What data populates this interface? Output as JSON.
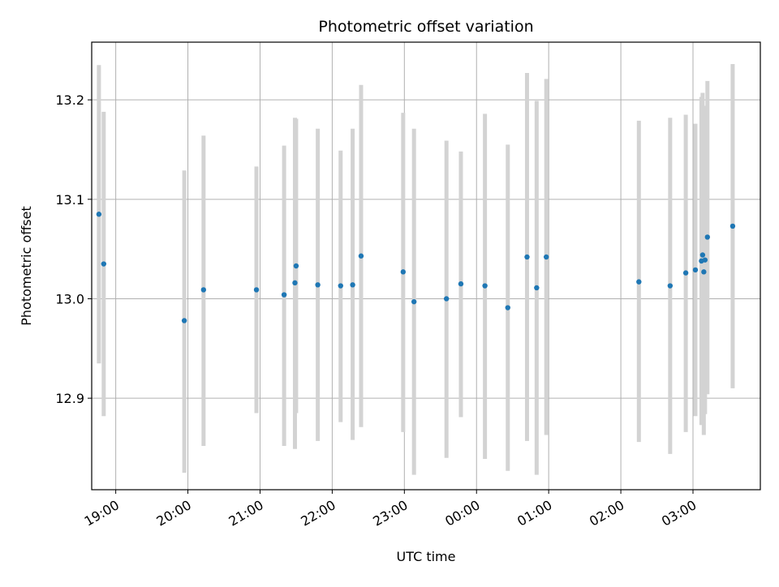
{
  "chart_data": {
    "type": "scatter",
    "title": "Photometric offset variation",
    "xlabel": "UTC time",
    "ylabel": "Photometric offset",
    "xlim": [
      "2000-01-01T18:40",
      "2000-01-02T03:56"
    ],
    "ylim": [
      12.808,
      13.258
    ],
    "grid": true,
    "x_ticks": [
      "19:00",
      "20:00",
      "21:00",
      "22:00",
      "23:00",
      "00:00",
      "01:00",
      "02:00",
      "03:00"
    ],
    "x_tick_times": [
      "2000-01-01T19:00",
      "2000-01-01T20:00",
      "2000-01-01T21:00",
      "2000-01-01T22:00",
      "2000-01-01T23:00",
      "2000-01-02T00:00",
      "2000-01-02T01:00",
      "2000-01-02T02:00",
      "2000-01-02T03:00"
    ],
    "y_ticks": [
      "12.9",
      "13.0",
      "13.1",
      "13.2"
    ],
    "y_tick_values": [
      12.9,
      13.0,
      13.1,
      13.2
    ],
    "point_color": "#1f77b4",
    "errorbar_color": "#d3d3d3",
    "points": [
      {
        "t": "2000-01-01T18:46",
        "y": 13.085,
        "lo": 12.935,
        "hi": 13.235
      },
      {
        "t": "2000-01-01T18:50",
        "y": 13.035,
        "lo": 12.882,
        "hi": 13.188
      },
      {
        "t": "2000-01-01T19:57",
        "y": 12.978,
        "lo": 12.825,
        "hi": 13.129
      },
      {
        "t": "2000-01-01T20:13",
        "y": 13.009,
        "lo": 12.852,
        "hi": 13.164
      },
      {
        "t": "2000-01-01T20:57",
        "y": 13.009,
        "lo": 12.885,
        "hi": 13.133
      },
      {
        "t": "2000-01-01T21:20",
        "y": 13.004,
        "lo": 12.852,
        "hi": 13.154
      },
      {
        "t": "2000-01-01T21:29",
        "y": 13.016,
        "lo": 12.849,
        "hi": 13.182
      },
      {
        "t": "2000-01-01T21:30",
        "y": 13.033,
        "lo": 12.885,
        "hi": 13.181
      },
      {
        "t": "2000-01-01T21:48",
        "y": 13.014,
        "lo": 12.857,
        "hi": 13.171
      },
      {
        "t": "2000-01-01T22:07",
        "y": 13.013,
        "lo": 12.876,
        "hi": 13.149
      },
      {
        "t": "2000-01-01T22:17",
        "y": 13.014,
        "lo": 12.858,
        "hi": 13.171
      },
      {
        "t": "2000-01-01T22:24",
        "y": 13.043,
        "lo": 12.871,
        "hi": 13.215
      },
      {
        "t": "2000-01-01T22:59",
        "y": 13.027,
        "lo": 12.866,
        "hi": 13.187
      },
      {
        "t": "2000-01-01T23:08",
        "y": 12.997,
        "lo": 12.823,
        "hi": 13.171
      },
      {
        "t": "2000-01-01T23:35",
        "y": 13.0,
        "lo": 12.84,
        "hi": 13.159
      },
      {
        "t": "2000-01-01T23:47",
        "y": 13.015,
        "lo": 12.881,
        "hi": 13.148
      },
      {
        "t": "2000-01-02T00:07",
        "y": 13.013,
        "lo": 12.839,
        "hi": 13.186
      },
      {
        "t": "2000-01-02T00:26",
        "y": 12.991,
        "lo": 12.827,
        "hi": 13.155
      },
      {
        "t": "2000-01-02T00:42",
        "y": 13.042,
        "lo": 12.857,
        "hi": 13.227
      },
      {
        "t": "2000-01-02T00:50",
        "y": 13.011,
        "lo": 12.823,
        "hi": 13.199
      },
      {
        "t": "2000-01-02T00:58",
        "y": 13.042,
        "lo": 12.863,
        "hi": 13.221
      },
      {
        "t": "2000-01-02T02:15",
        "y": 13.017,
        "lo": 12.856,
        "hi": 13.179
      },
      {
        "t": "2000-01-02T02:41",
        "y": 13.013,
        "lo": 12.844,
        "hi": 13.182
      },
      {
        "t": "2000-01-02T02:54",
        "y": 13.026,
        "lo": 12.866,
        "hi": 13.185
      },
      {
        "t": "2000-01-02T03:02",
        "y": 13.029,
        "lo": 12.882,
        "hi": 13.176
      },
      {
        "t": "2000-01-02T03:07",
        "y": 13.038,
        "lo": 12.873,
        "hi": 13.203
      },
      {
        "t": "2000-01-02T03:08",
        "y": 13.044,
        "lo": 12.881,
        "hi": 13.207
      },
      {
        "t": "2000-01-02T03:09",
        "y": 13.027,
        "lo": 12.863,
        "hi": 13.193
      },
      {
        "t": "2000-01-02T03:10",
        "y": 13.039,
        "lo": 12.884,
        "hi": 13.194
      },
      {
        "t": "2000-01-02T03:12",
        "y": 13.062,
        "lo": 12.904,
        "hi": 13.219
      },
      {
        "t": "2000-01-02T03:33",
        "y": 13.073,
        "lo": 12.91,
        "hi": 13.236
      }
    ]
  }
}
